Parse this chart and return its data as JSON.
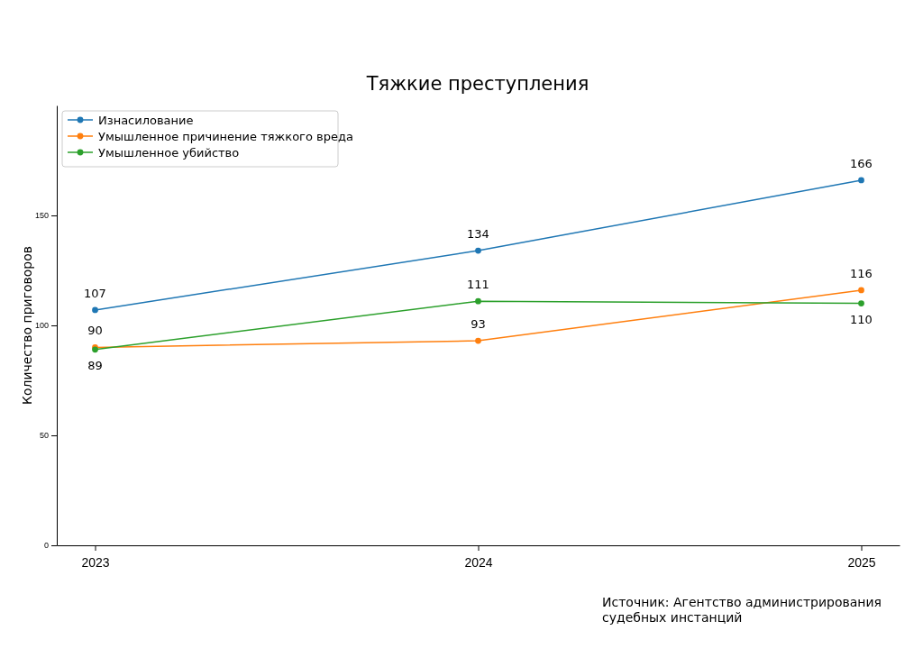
{
  "chart_data": {
    "type": "line",
    "title": "Тяжкие преступления",
    "ylabel": "Количество приговоров",
    "x": [
      2023,
      2024,
      2025
    ],
    "xlim": [
      2022.9,
      2025.1
    ],
    "xticks": [
      2023,
      2024,
      2025
    ],
    "ylim": [
      0,
      200
    ],
    "yticks": [
      0,
      50,
      100,
      150
    ],
    "series": [
      {
        "name": "Изнасилование",
        "color": "#1f77b4",
        "values": [
          107,
          134,
          166
        ]
      },
      {
        "name": "Умышленное причинение тяжкого вреда",
        "color": "#ff7f0e",
        "values": [
          90,
          93,
          116
        ]
      },
      {
        "name": "Умышленное убийство",
        "color": "#2ca02c",
        "values": [
          89,
          111,
          110
        ]
      }
    ],
    "marker": "circle",
    "line_style": "solid",
    "grid": false,
    "legend": "top left",
    "data_labels": true,
    "annotations": [
      "Источник: Агентство администрирования судебных инстанций"
    ]
  }
}
